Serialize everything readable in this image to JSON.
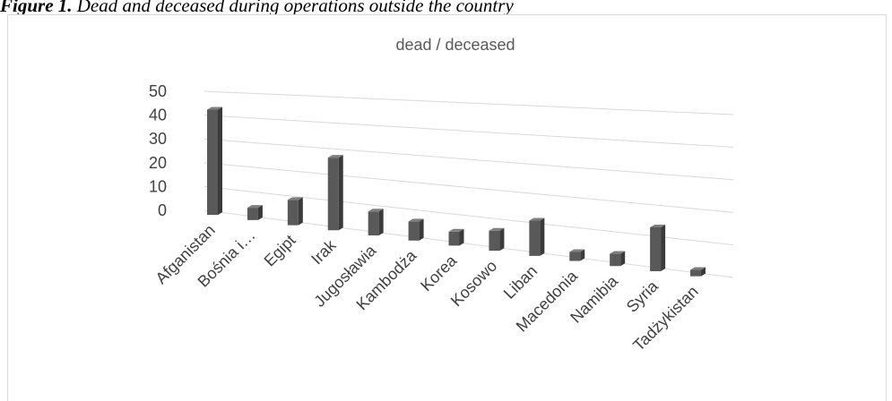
{
  "caption": {
    "label": "Figure 1.",
    "text": "Dead and deceased during operations outside the country"
  },
  "chart_data": {
    "type": "bar",
    "title": "dead / deceased",
    "categories": [
      "Afganistan",
      "Bośnia i…",
      "Egipt",
      "Irak",
      "Jugosławia",
      "Kambodża",
      "Korea",
      "Kosowo",
      "Liban",
      "Macedonia",
      "Namibia",
      "Syria",
      "Tadżykistan"
    ],
    "values": [
      44,
      5,
      10,
      28,
      9,
      7,
      5,
      7,
      12,
      3,
      4,
      14,
      2
    ],
    "ylim": [
      0,
      50
    ],
    "yticks": [
      0,
      10,
      20,
      30,
      40,
      50
    ],
    "grid": true,
    "legend": "none",
    "bar_color": "#595959"
  }
}
